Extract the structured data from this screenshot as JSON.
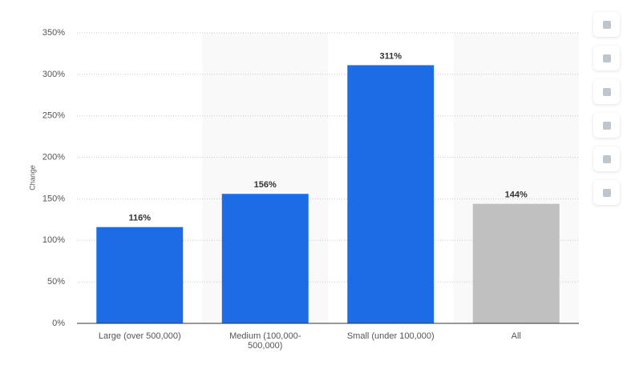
{
  "chart_data": {
    "type": "bar",
    "y_label": "Change",
    "categories": [
      "Large (over 500,000)",
      "Medium (100,000-500,000)",
      "Small (under 100,000)",
      "All"
    ],
    "values": [
      116,
      156,
      311,
      144
    ],
    "value_labels": [
      "116%",
      "156%",
      "311%",
      "144%"
    ],
    "colors": [
      "#1b6ce5",
      "#1b6ce5",
      "#1b6ce5",
      "#c0c0c0"
    ],
    "ylim": [
      0,
      350
    ],
    "yticks": [
      {
        "value": 0,
        "label": "0%"
      },
      {
        "value": 50,
        "label": "50%"
      },
      {
        "value": 100,
        "label": "100%"
      },
      {
        "value": 150,
        "label": "150%"
      },
      {
        "value": 200,
        "label": "200%"
      },
      {
        "value": 250,
        "label": "250%"
      },
      {
        "value": 300,
        "label": "300%"
      },
      {
        "value": 350,
        "label": "350%"
      }
    ],
    "grid": true
  }
}
